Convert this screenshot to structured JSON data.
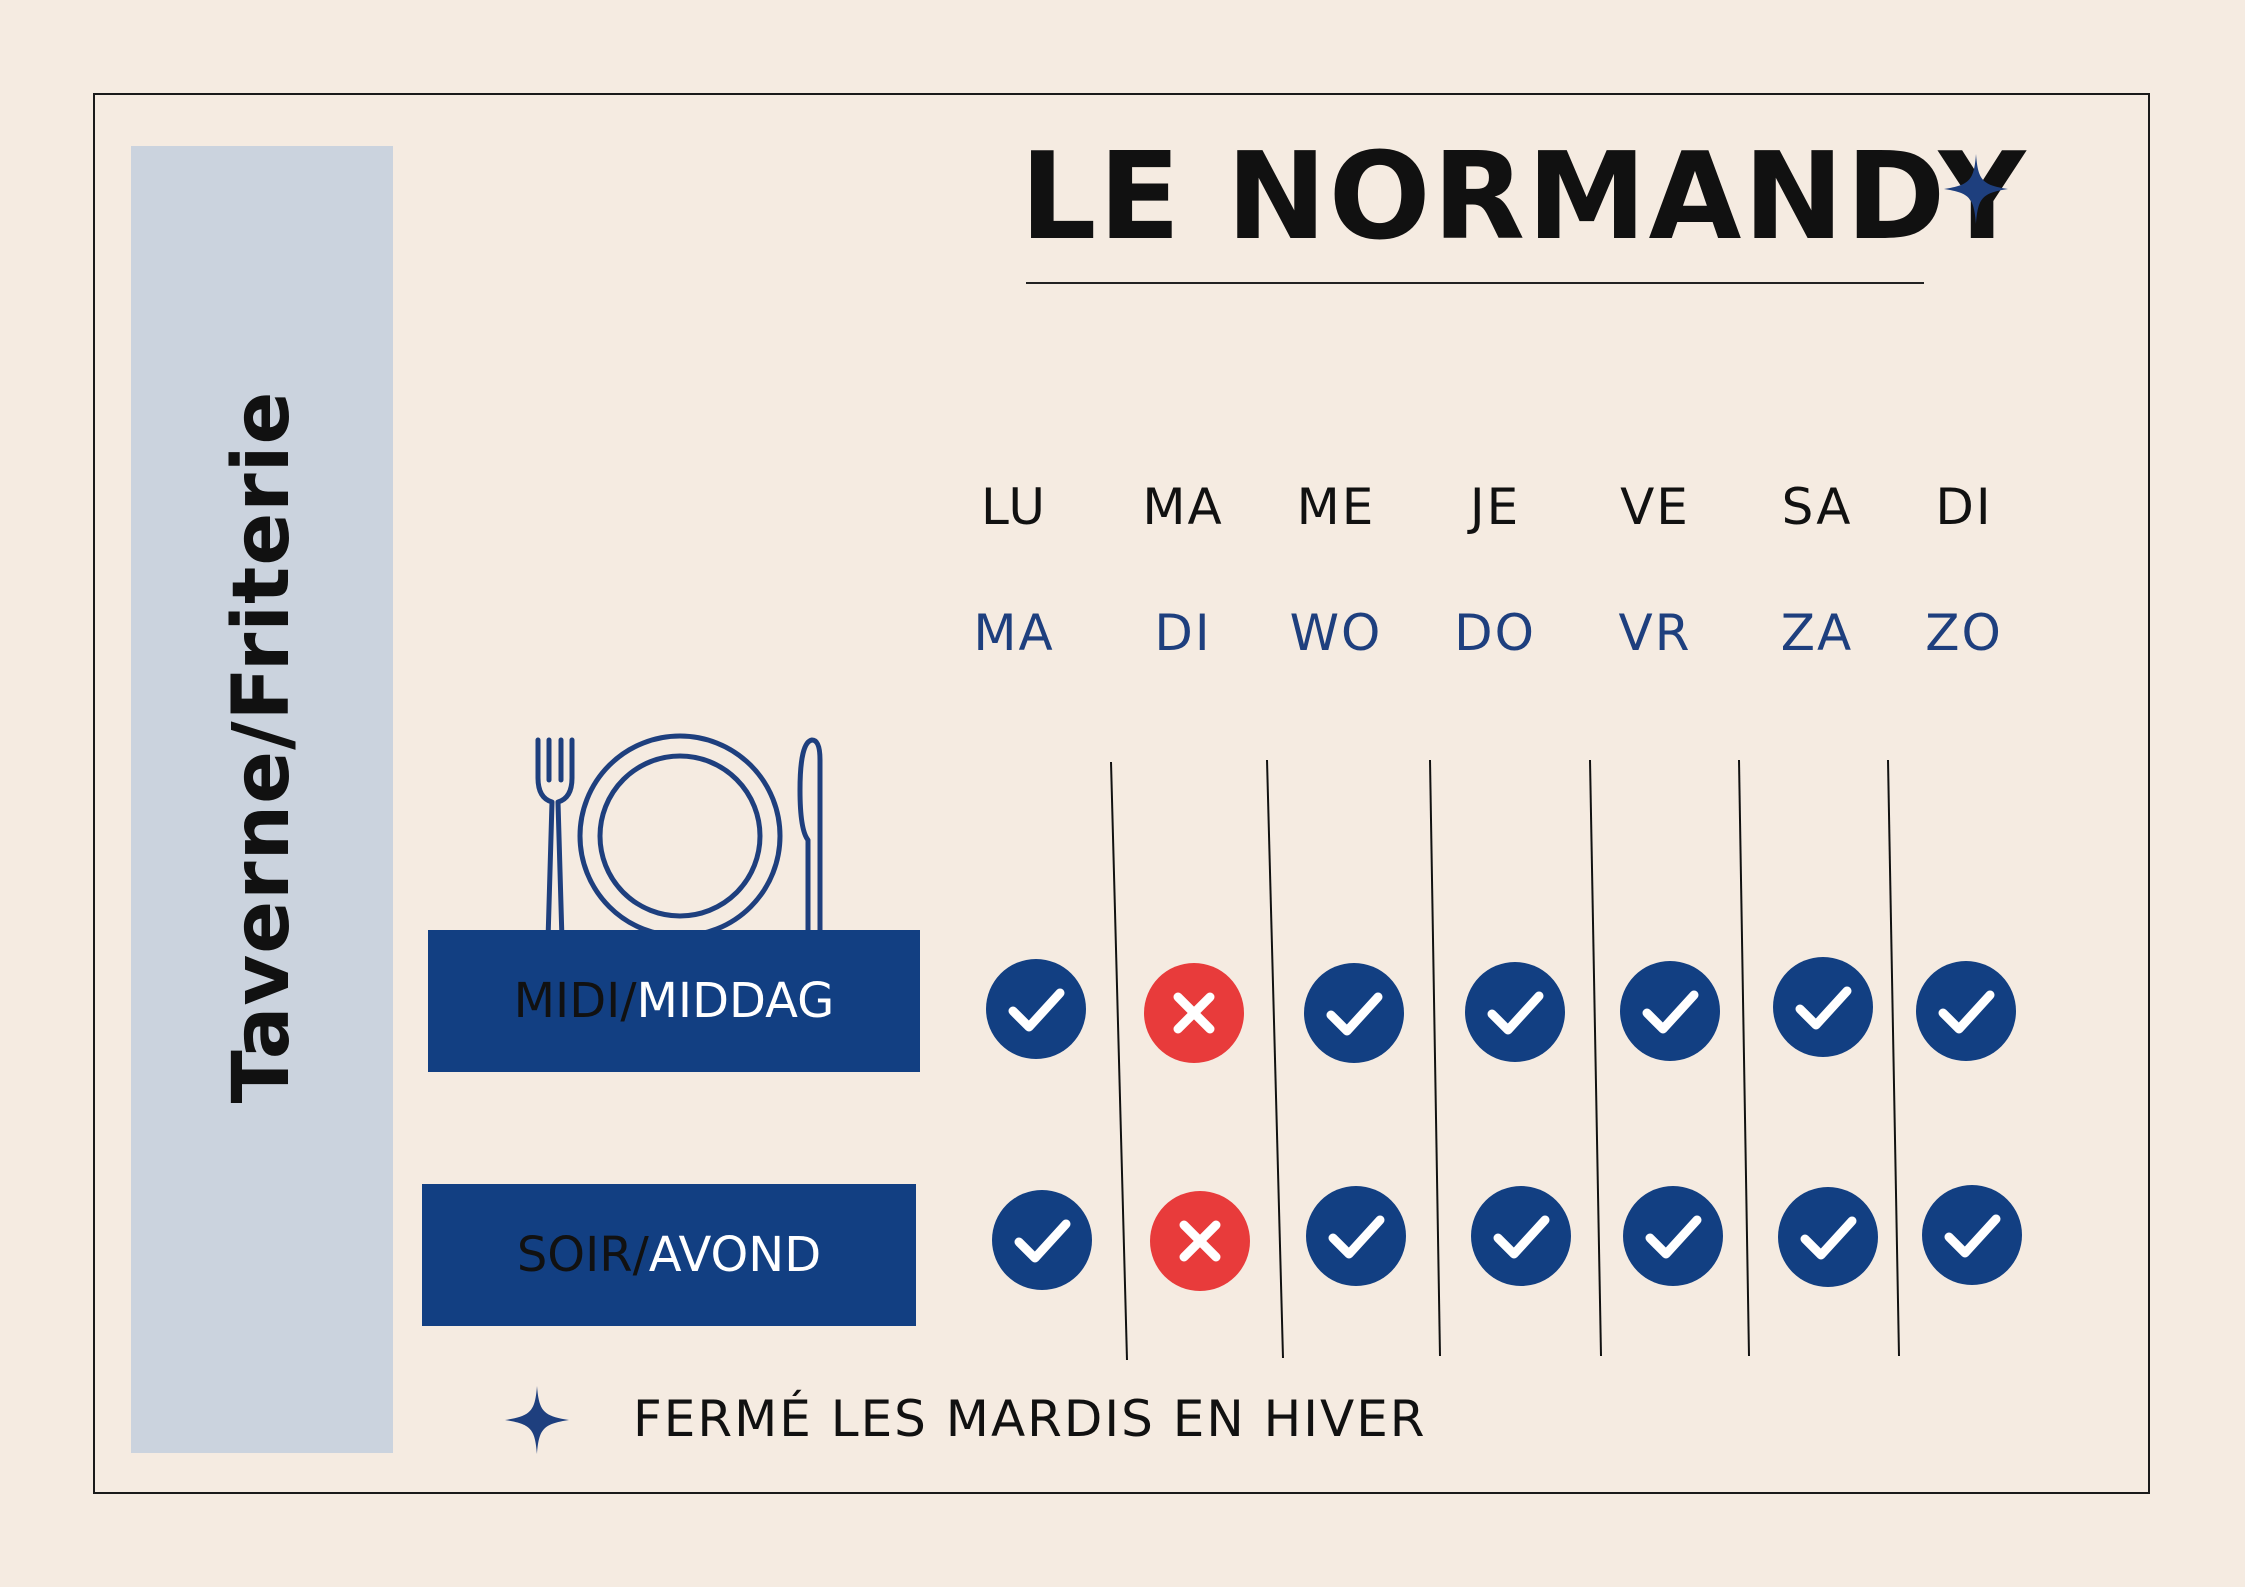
{
  "title": "LE NORMANDY",
  "category": "Taverne/Friterie",
  "days": [
    {
      "fr": "LU",
      "nl": "MA",
      "midday": "open",
      "evening": "open"
    },
    {
      "fr": "MA",
      "nl": "DI",
      "midday": "closed",
      "evening": "closed"
    },
    {
      "fr": "ME",
      "nl": "WO",
      "midday": "open",
      "evening": "open"
    },
    {
      "fr": "JE",
      "nl": "DO",
      "midday": "open",
      "evening": "open"
    },
    {
      "fr": "VE",
      "nl": "VR",
      "midday": "open",
      "evening": "open"
    },
    {
      "fr": "SA",
      "nl": "ZA",
      "midday": "open",
      "evening": "open"
    },
    {
      "fr": "DI",
      "nl": "ZO",
      "midday": "open",
      "evening": "open"
    }
  ],
  "rows": {
    "midday": {
      "fr": "MIDI/",
      "nl": "MIDDAG"
    },
    "evening": {
      "fr": "SOIR/",
      "nl": "AVOND"
    }
  },
  "footer_note": "FERMÉ LES MARDIS EN HIVER",
  "icons": {
    "open": "check-circle-icon",
    "closed": "cross-circle-icon",
    "dish": "plate-and-cutlery-icon",
    "sparkle": "sparkle-icon"
  },
  "colors": {
    "background": "#f5ebe1",
    "side_panel": "#cbd3de",
    "navy": "#123f82",
    "open": "#123f82",
    "closed": "#e83b3b"
  }
}
